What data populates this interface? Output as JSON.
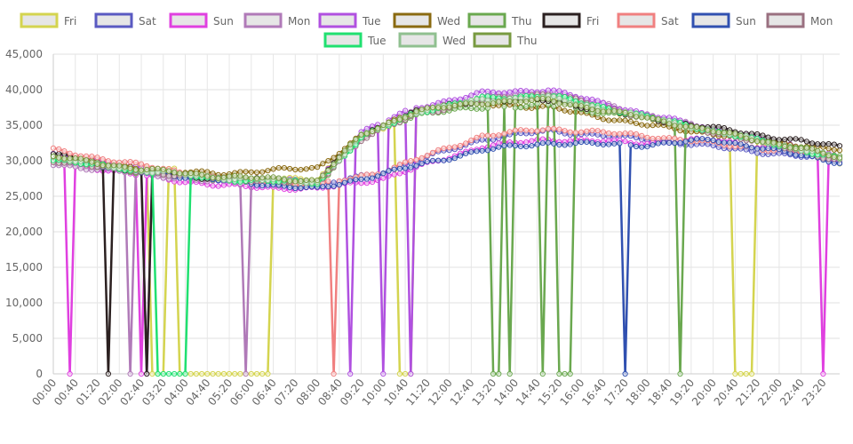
{
  "chart_data": {
    "type": "line",
    "x_tick_labels": [
      "00:00",
      "00:40",
      "01:20",
      "02:00",
      "02:40",
      "03:20",
      "04:00",
      "04:40",
      "05:20",
      "06:00",
      "06:40",
      "07:20",
      "08:00",
      "08:40",
      "09:20",
      "10:00",
      "10:40",
      "11:20",
      "12:00",
      "12:40",
      "13:20",
      "14:00",
      "14:40",
      "15:20",
      "16:00",
      "16:40",
      "17:20",
      "18:00",
      "18:40",
      "19:20",
      "20:00",
      "20:40",
      "21:20",
      "22:00",
      "22:40",
      "23:20"
    ],
    "x_points": 144,
    "x_interval_minutes": 10,
    "ylim": [
      0,
      45000
    ],
    "y_ticks": [
      0,
      5000,
      10000,
      15000,
      20000,
      25000,
      30000,
      35000,
      40000,
      45000
    ],
    "y_tick_labels": [
      "0",
      "5,000",
      "10,000",
      "15,000",
      "20,000",
      "25,000",
      "30,000",
      "35,000",
      "40,000",
      "45,000"
    ],
    "grid": true,
    "legend_position": "top",
    "series": [
      {
        "name": "Fri",
        "color": "#d4d44f",
        "profile": "weekday",
        "anchors": [
          [
            0,
            30500
          ],
          [
            30,
            28000
          ],
          [
            36,
            27500
          ],
          [
            48,
            27500
          ],
          [
            56,
            33000
          ],
          [
            66,
            37000
          ],
          [
            78,
            38500
          ],
          [
            90,
            38500
          ],
          [
            108,
            36000
          ],
          [
            138,
            31000
          ],
          [
            143,
            29500
          ]
        ],
        "drops": [
          [
            18,
            20
          ],
          [
            23,
            39
          ],
          [
            63,
            65
          ],
          [
            124,
            124
          ],
          [
            125,
            127
          ]
        ]
      },
      {
        "name": "Sat",
        "color": "#5a5ac2",
        "profile": "weekend",
        "anchors": [
          [
            0,
            30000
          ],
          [
            15,
            28500
          ],
          [
            30,
            27300
          ],
          [
            48,
            26400
          ],
          [
            60,
            28500
          ],
          [
            78,
            33000
          ],
          [
            90,
            34200
          ],
          [
            108,
            33000
          ],
          [
            143,
            30000
          ]
        ],
        "drops": []
      },
      {
        "name": "Sun",
        "color": "#e040e0",
        "profile": "weekend",
        "anchors": [
          [
            0,
            30000
          ],
          [
            15,
            28000
          ],
          [
            30,
            26500
          ],
          [
            48,
            26000
          ],
          [
            60,
            27500
          ],
          [
            78,
            32000
          ],
          [
            90,
            33000
          ],
          [
            108,
            32500
          ],
          [
            120,
            33000
          ],
          [
            143,
            30200
          ]
        ],
        "drops": [
          [
            3,
            3
          ],
          [
            16,
            16
          ],
          [
            140,
            140
          ]
        ]
      },
      {
        "name": "Mon",
        "color": "#b07ab8",
        "profile": "weekday",
        "anchors": [
          [
            0,
            29500
          ],
          [
            15,
            28200
          ],
          [
            30,
            27000
          ],
          [
            48,
            26500
          ],
          [
            56,
            33500
          ],
          [
            66,
            37000
          ],
          [
            78,
            39000
          ],
          [
            90,
            39800
          ],
          [
            108,
            36500
          ],
          [
            138,
            31000
          ],
          [
            143,
            30000
          ]
        ],
        "drops": [
          [
            14,
            14
          ],
          [
            35,
            35
          ]
        ]
      },
      {
        "name": "Tue",
        "color": "#b050e0",
        "profile": "weekday",
        "anchors": [
          [
            0,
            31000
          ],
          [
            15,
            29000
          ],
          [
            30,
            27500
          ],
          [
            48,
            27000
          ],
          [
            56,
            34000
          ],
          [
            66,
            37500
          ],
          [
            78,
            39500
          ],
          [
            90,
            40000
          ],
          [
            108,
            36500
          ],
          [
            138,
            31500
          ],
          [
            143,
            30500
          ]
        ],
        "drops": [
          [
            17,
            17
          ],
          [
            54,
            54
          ],
          [
            60,
            60
          ],
          [
            65,
            65
          ]
        ]
      },
      {
        "name": "Wed",
        "color": "#8a6a10",
        "profile": "weekday",
        "anchors": [
          [
            0,
            30500
          ],
          [
            20,
            28500
          ],
          [
            30,
            28200
          ],
          [
            48,
            29000
          ],
          [
            56,
            33500
          ],
          [
            66,
            37000
          ],
          [
            78,
            38000
          ],
          [
            90,
            37500
          ],
          [
            108,
            35000
          ],
          [
            138,
            32000
          ],
          [
            143,
            31500
          ]
        ],
        "drops": []
      },
      {
        "name": "Thu",
        "color": "#6aa84f",
        "profile": "weekday",
        "anchors": [
          [
            0,
            30000
          ],
          [
            15,
            28500
          ],
          [
            30,
            27500
          ],
          [
            48,
            26500
          ],
          [
            56,
            33500
          ],
          [
            66,
            36500
          ],
          [
            78,
            37500
          ],
          [
            90,
            37800
          ],
          [
            108,
            36000
          ],
          [
            138,
            31500
          ],
          [
            143,
            30500
          ]
        ],
        "drops": [
          [
            80,
            81
          ],
          [
            83,
            83
          ],
          [
            89,
            89
          ],
          [
            92,
            94
          ],
          [
            114,
            114
          ]
        ]
      },
      {
        "name": "Fri",
        "color": "#2b2020",
        "profile": "weekday",
        "anchors": [
          [
            0,
            31000
          ],
          [
            15,
            28500
          ],
          [
            30,
            27500
          ],
          [
            48,
            27000
          ],
          [
            56,
            33500
          ],
          [
            66,
            37000
          ],
          [
            78,
            38500
          ],
          [
            90,
            38500
          ],
          [
            108,
            36000
          ],
          [
            138,
            32500
          ],
          [
            143,
            32000
          ]
        ],
        "drops": [
          [
            10,
            10
          ],
          [
            17,
            17
          ]
        ]
      },
      {
        "name": "Sat",
        "color": "#f08080",
        "profile": "weekend",
        "anchors": [
          [
            0,
            31500
          ],
          [
            15,
            29500
          ],
          [
            30,
            27500
          ],
          [
            48,
            26500
          ],
          [
            60,
            28500
          ],
          [
            78,
            33500
          ],
          [
            90,
            34500
          ],
          [
            108,
            33500
          ],
          [
            143,
            30500
          ]
        ],
        "drops": [
          [
            51,
            51
          ]
        ]
      },
      {
        "name": "Sun",
        "color": "#3050b0",
        "profile": "weekend",
        "anchors": [
          [
            0,
            30500
          ],
          [
            15,
            28500
          ],
          [
            30,
            27300
          ],
          [
            48,
            26000
          ],
          [
            60,
            28200
          ],
          [
            78,
            31500
          ],
          [
            90,
            32500
          ],
          [
            108,
            32200
          ],
          [
            120,
            33000
          ],
          [
            143,
            29800
          ]
        ],
        "drops": [
          [
            104,
            104
          ]
        ]
      },
      {
        "name": "Mon",
        "color": "#9a7080",
        "profile": "weekday",
        "anchors": [
          [
            0,
            30000
          ],
          [
            15,
            28500
          ],
          [
            30,
            27500
          ],
          [
            48,
            26800
          ],
          [
            56,
            33000
          ],
          [
            66,
            36500
          ],
          [
            78,
            38500
          ],
          [
            90,
            39500
          ],
          [
            108,
            36000
          ],
          [
            138,
            31000
          ],
          [
            143,
            30000
          ]
        ],
        "drops": []
      },
      {
        "name": "Tue",
        "color": "#20e070",
        "profile": "weekday",
        "anchors": [
          [
            0,
            30200
          ],
          [
            15,
            28600
          ],
          [
            30,
            27400
          ],
          [
            48,
            26900
          ],
          [
            56,
            33200
          ],
          [
            66,
            36800
          ],
          [
            78,
            38800
          ],
          [
            90,
            39200
          ],
          [
            108,
            36200
          ],
          [
            138,
            31200
          ],
          [
            143,
            30200
          ]
        ],
        "drops": [
          [
            19,
            24
          ]
        ]
      },
      {
        "name": "Wed",
        "color": "#90c090",
        "profile": "weekday",
        "anchors": [
          [
            0,
            30400
          ],
          [
            15,
            28700
          ],
          [
            30,
            27600
          ],
          [
            48,
            27000
          ],
          [
            56,
            33400
          ],
          [
            66,
            36900
          ],
          [
            78,
            38600
          ],
          [
            90,
            38900
          ],
          [
            108,
            36100
          ],
          [
            138,
            31300
          ],
          [
            143,
            30300
          ]
        ],
        "drops": []
      },
      {
        "name": "Thu",
        "color": "#789a40",
        "profile": "weekday",
        "anchors": [
          [
            0,
            30600
          ],
          [
            15,
            28900
          ],
          [
            30,
            27800
          ],
          [
            48,
            27200
          ],
          [
            56,
            33600
          ],
          [
            66,
            37000
          ],
          [
            78,
            38200
          ],
          [
            90,
            38500
          ],
          [
            108,
            36000
          ],
          [
            138,
            31400
          ],
          [
            143,
            30400
          ]
        ],
        "drops": []
      }
    ]
  }
}
